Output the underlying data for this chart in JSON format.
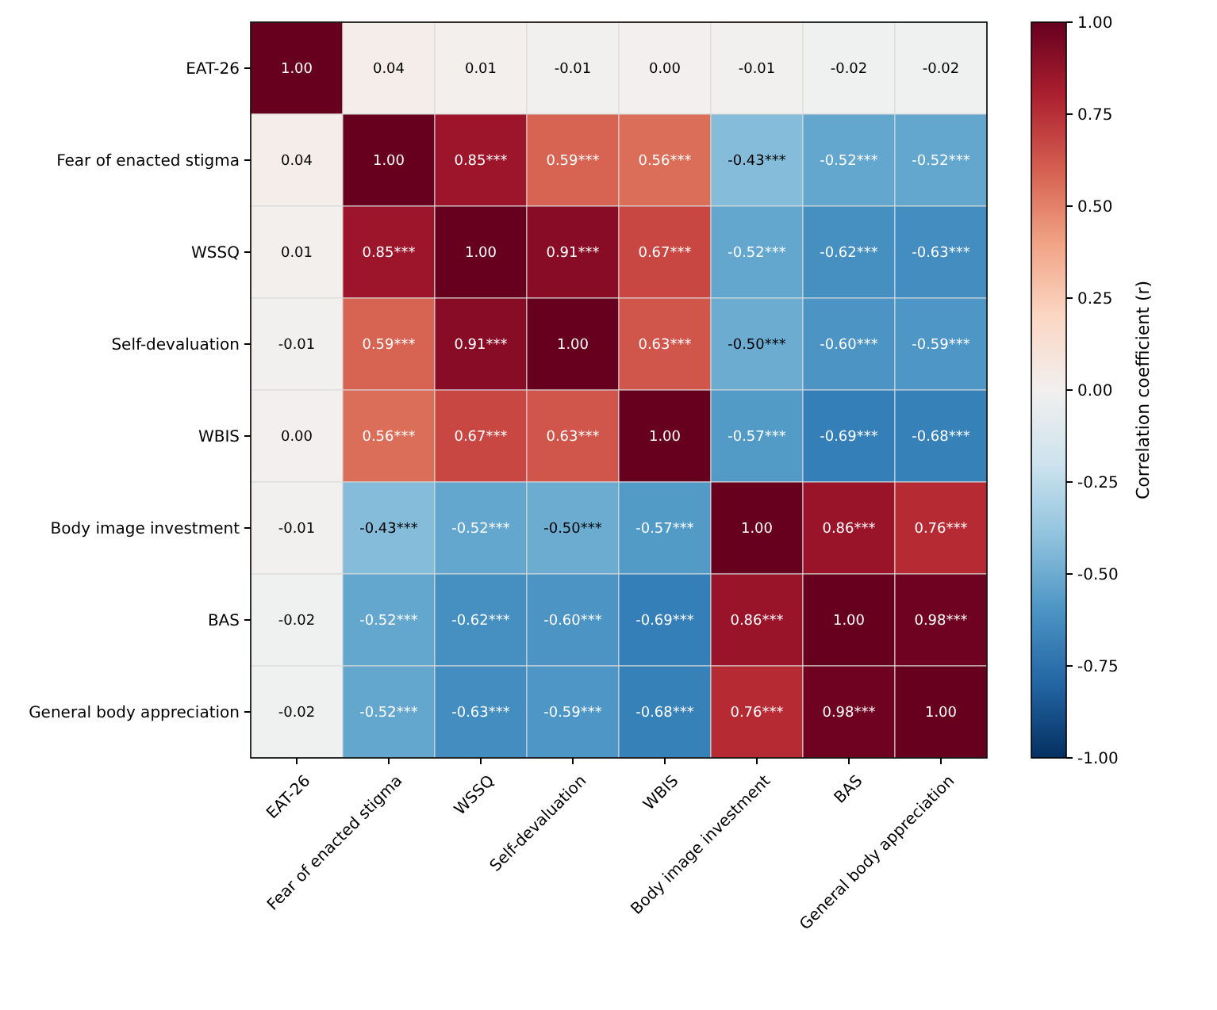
{
  "chart_data": {
    "type": "heatmap",
    "categories": [
      "EAT-26",
      "Fear of enacted stigma",
      "WSSQ",
      "Self-devaluation",
      "WBIS",
      "Body image investment",
      "BAS",
      "General body appreciation"
    ],
    "y_categories": [
      "EAT-26",
      "Fear of enacted stigma",
      "WSSQ",
      "Self-devaluation",
      "WBIS",
      "Body image investment",
      "BAS",
      "General body appreciation"
    ],
    "cells": [
      [
        1.0,
        0.04,
        0.01,
        -0.01,
        0.0,
        -0.01,
        -0.02,
        -0.02
      ],
      [
        0.04,
        1.0,
        0.85,
        0.59,
        0.56,
        -0.43,
        -0.52,
        -0.52
      ],
      [
        0.01,
        0.85,
        1.0,
        0.91,
        0.67,
        -0.52,
        -0.62,
        -0.63
      ],
      [
        -0.01,
        0.59,
        0.91,
        1.0,
        0.63,
        -0.5,
        -0.6,
        -0.59
      ],
      [
        0.0,
        0.56,
        0.67,
        0.63,
        1.0,
        -0.57,
        -0.69,
        -0.68
      ],
      [
        -0.01,
        -0.43,
        -0.52,
        -0.5,
        -0.57,
        1.0,
        0.86,
        0.76
      ],
      [
        -0.02,
        -0.52,
        -0.62,
        -0.6,
        -0.69,
        0.86,
        1.0,
        0.98
      ],
      [
        -0.02,
        -0.52,
        -0.63,
        -0.59,
        -0.68,
        0.76,
        0.98,
        1.0
      ]
    ],
    "cell_labels": [
      [
        "1.00",
        "0.04",
        "0.01",
        "-0.01",
        "0.00",
        "-0.01",
        "-0.02",
        "-0.02"
      ],
      [
        "0.04",
        "1.00",
        "0.85***",
        "0.59***",
        "0.56***",
        "-0.43***",
        "-0.52***",
        "-0.52***"
      ],
      [
        "0.01",
        "0.85***",
        "1.00",
        "0.91***",
        "0.67***",
        "-0.52***",
        "-0.62***",
        "-0.63***"
      ],
      [
        "-0.01",
        "0.59***",
        "0.91***",
        "1.00",
        "0.63***",
        "-0.50***",
        "-0.60***",
        "-0.59***"
      ],
      [
        "0.00",
        "0.56***",
        "0.67***",
        "0.63***",
        "1.00",
        "-0.57***",
        "-0.69***",
        "-0.68***"
      ],
      [
        "-0.01",
        "-0.43***",
        "-0.52***",
        "-0.50***",
        "-0.57***",
        "1.00",
        "0.86***",
        "0.76***"
      ],
      [
        "-0.02",
        "-0.52***",
        "-0.62***",
        "-0.60***",
        "-0.69***",
        "0.86***",
        "1.00",
        "0.98***"
      ],
      [
        "-0.02",
        "-0.52***",
        "-0.63***",
        "-0.59***",
        "-0.68***",
        "0.76***",
        "0.98***",
        "1.00"
      ]
    ],
    "clim": [
      -1,
      1
    ],
    "cticks": [
      {
        "value": -1,
        "label": "-1.00"
      },
      {
        "value": -0.75,
        "label": "-0.75"
      },
      {
        "value": -0.5,
        "label": "-0.50"
      },
      {
        "value": -0.25,
        "label": "-0.25"
      },
      {
        "value": 0,
        "label": "0.00"
      },
      {
        "value": 0.25,
        "label": "0.25"
      },
      {
        "value": 0.5,
        "label": "0.50"
      },
      {
        "value": 0.75,
        "label": "0.75"
      },
      {
        "value": 1,
        "label": "1.00"
      }
    ],
    "clabel": "Correlation coefficient (r)"
  }
}
